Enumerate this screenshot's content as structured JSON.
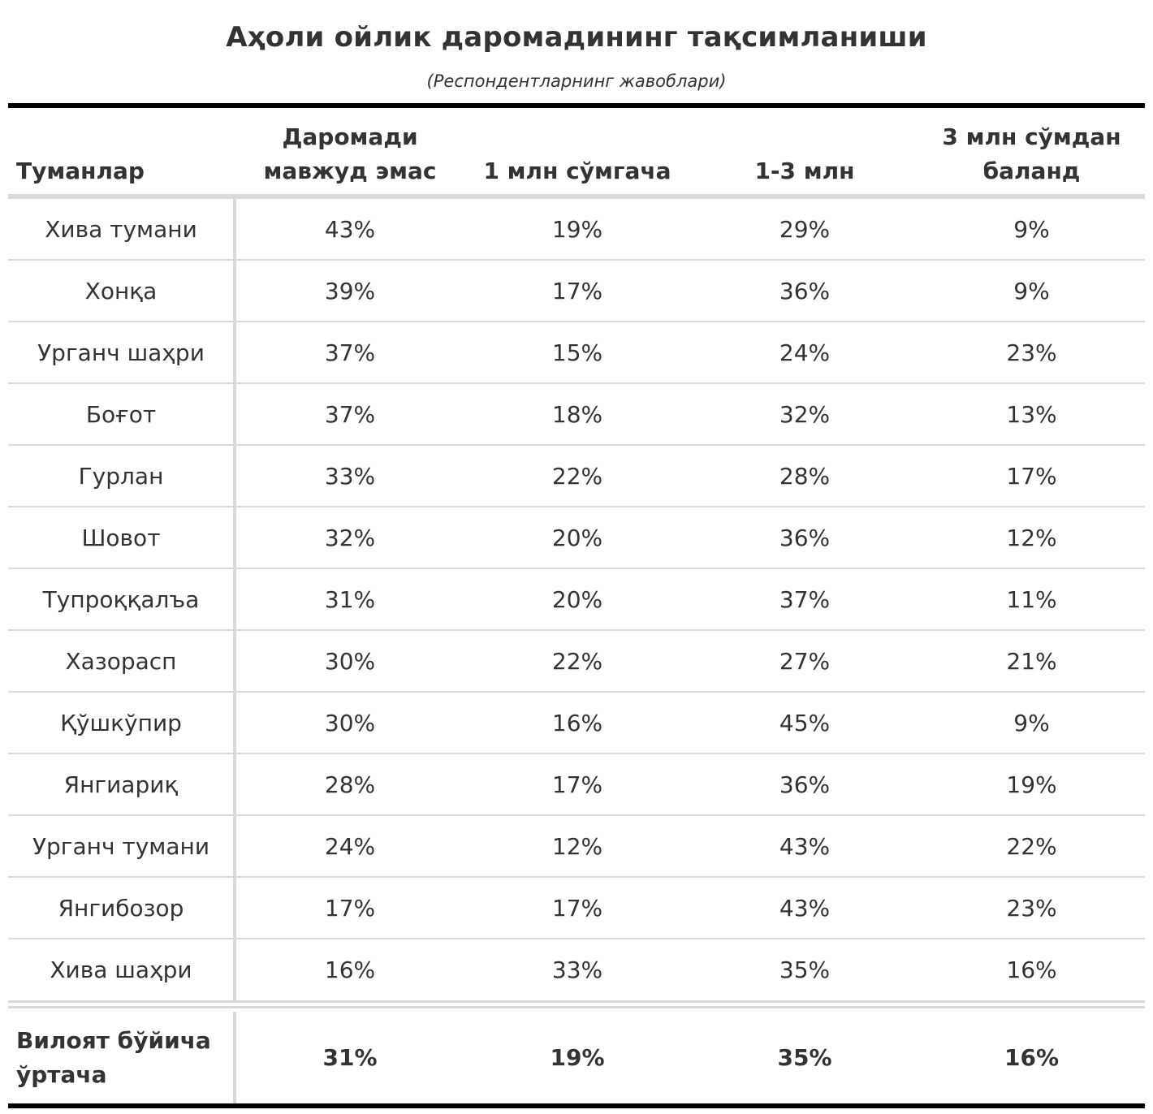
{
  "title": "Аҳоли ойлик даромадининг тақсимланиши",
  "subtitle": "(Респондентларнинг жавоблари)",
  "columns": [
    "Туманлар",
    "Даромади мавжуд эмас",
    "1 млн сўмгача",
    "1-3 млн",
    "3 млн сўмдан баланд"
  ],
  "rows": [
    [
      "Хива тумани",
      "43%",
      "19%",
      "29%",
      "9%"
    ],
    [
      "Хонқа",
      "39%",
      "17%",
      "36%",
      "9%"
    ],
    [
      "Урганч шаҳри",
      "37%",
      "15%",
      "24%",
      "23%"
    ],
    [
      "Боғот",
      "37%",
      "18%",
      "32%",
      "13%"
    ],
    [
      "Гурлан",
      "33%",
      "22%",
      "28%",
      "17%"
    ],
    [
      "Шовот",
      "32%",
      "20%",
      "36%",
      "12%"
    ],
    [
      "Тупроққалъа",
      "31%",
      "20%",
      "37%",
      "11%"
    ],
    [
      "Хазорасп",
      "30%",
      "22%",
      "27%",
      "21%"
    ],
    [
      "Қўшкўпир",
      "30%",
      "16%",
      "45%",
      "9%"
    ],
    [
      "Янгиариқ",
      "28%",
      "17%",
      "36%",
      "19%"
    ],
    [
      "Урганч тумани",
      "24%",
      "12%",
      "43%",
      "22%"
    ],
    [
      "Янгибозор",
      "17%",
      "17%",
      "43%",
      "23%"
    ],
    [
      "Хива шаҳри",
      "16%",
      "33%",
      "35%",
      "16%"
    ]
  ],
  "footer": [
    "Вилоят бўйича ўртача",
    "31%",
    "19%",
    "35%",
    "16%"
  ],
  "colors": {
    "text": "#333333",
    "rule_dark": "#000000",
    "rule_light": "#d9d9d9",
    "background": "#ffffff"
  },
  "chart_data": {
    "type": "table",
    "title": "Аҳоли ойлик даромадининг тақсимланиши",
    "subtitle": "(Респондентларнинг жавоблари)",
    "columns": [
      "Туманлар",
      "Даромади мавжуд эмас",
      "1 млн сўмгача",
      "1-3 млн",
      "3 млн сўмдан баланд"
    ],
    "rows": [
      [
        "Хива тумани",
        43,
        19,
        29,
        9
      ],
      [
        "Хонқа",
        39,
        17,
        36,
        9
      ],
      [
        "Урганч шаҳри",
        37,
        15,
        24,
        23
      ],
      [
        "Боғот",
        37,
        18,
        32,
        13
      ],
      [
        "Гурлан",
        33,
        22,
        28,
        17
      ],
      [
        "Шовот",
        32,
        20,
        36,
        12
      ],
      [
        "Тупроққалъа",
        31,
        20,
        37,
        11
      ],
      [
        "Хазорасп",
        30,
        22,
        27,
        21
      ],
      [
        "Қўшкўпир",
        30,
        16,
        45,
        9
      ],
      [
        "Янгиариқ",
        28,
        17,
        36,
        19
      ],
      [
        "Урганч тумани",
        24,
        12,
        43,
        22
      ],
      [
        "Янгибозор",
        17,
        17,
        43,
        23
      ],
      [
        "Хива шаҳри",
        16,
        33,
        35,
        16
      ]
    ],
    "footer": [
      "Вилоят бўйича ўртача",
      31,
      19,
      35,
      16
    ],
    "unit": "%"
  }
}
